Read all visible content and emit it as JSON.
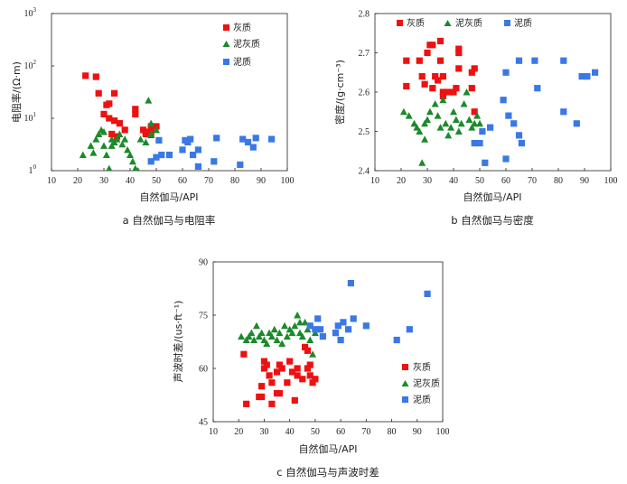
{
  "figure": {
    "series_colors": {
      "limestone": "#ee1111",
      "marl": "#1b8a2a",
      "mudstone": "#3a78e8"
    },
    "charts": [
      {
        "id": "a",
        "caption": "a  自然伽马与电阻率",
        "xlabel": "自然伽马/API",
        "ylabel": "电阻率/(Ω·m)",
        "ytick_labels": [
          "1",
          "10",
          "10",
          "10"
        ],
        "ytick_superscripts": [
          "0",
          "1",
          "2",
          "3"
        ],
        "xtick_labels": [
          "10",
          "20",
          "30",
          "40",
          "50",
          "60",
          "70",
          "80",
          "90",
          "100"
        ]
      },
      {
        "id": "b",
        "caption": "b  自然伽马与密度",
        "xlabel": "自然伽马/API",
        "ylabel": "密度/(g·cm⁻³)",
        "ytick_labels": [
          "2.4",
          "2.5",
          "2.6",
          "2.7",
          "2.8"
        ],
        "xtick_labels": [
          "10",
          "20",
          "30",
          "40",
          "50",
          "60",
          "70",
          "80",
          "90",
          "100"
        ]
      },
      {
        "id": "c",
        "caption": "c  自然伽马与声波时差",
        "xlabel": "自然伽马/API",
        "ylabel": "声波时差/(us·ft⁻¹)",
        "ytick_labels": [
          "45",
          "60",
          "75",
          "90"
        ],
        "xtick_labels": [
          "10",
          "20",
          "30",
          "40",
          "50",
          "60",
          "70",
          "80",
          "90",
          "100"
        ]
      }
    ]
  },
  "chart_data": [
    {
      "type": "scatter",
      "title": "a  自然伽马与电阻率",
      "xlabel": "自然伽马/API",
      "ylabel": "电阻率/(Ω·m)",
      "xlim": [
        10,
        100
      ],
      "ylim": [
        1,
        1000
      ],
      "yscale": "log",
      "legend": [
        "灰质",
        "泥灰质",
        "泥质"
      ],
      "legend_position": "top-center",
      "series": [
        {
          "name": "灰质",
          "marker": "square",
          "points": [
            [
              23,
              65
            ],
            [
              27,
              62
            ],
            [
              28,
              30
            ],
            [
              31,
              18
            ],
            [
              32,
              19
            ],
            [
              34,
              30
            ],
            [
              30,
              12
            ],
            [
              32,
              10
            ],
            [
              34,
              9
            ],
            [
              36,
              8
            ],
            [
              38,
              6
            ],
            [
              33,
              5
            ],
            [
              35,
              4.5
            ],
            [
              42,
              12
            ],
            [
              42,
              15
            ],
            [
              45,
              6
            ],
            [
              46,
              5.5
            ],
            [
              48,
              6
            ],
            [
              48,
              7
            ],
            [
              50,
              7
            ],
            [
              46,
              5
            ],
            [
              48,
              4.8
            ]
          ]
        },
        {
          "name": "泥灰质",
          "marker": "triangle",
          "points": [
            [
              22,
              2
            ],
            [
              25,
              3
            ],
            [
              26,
              2.2
            ],
            [
              27,
              4
            ],
            [
              28,
              5
            ],
            [
              29,
              6
            ],
            [
              30,
              5.5
            ],
            [
              30,
              3
            ],
            [
              31,
              2
            ],
            [
              33,
              3
            ],
            [
              33,
              4
            ],
            [
              34,
              3.5
            ],
            [
              35,
              4
            ],
            [
              37,
              3.2
            ],
            [
              38,
              4
            ],
            [
              39,
              2.5
            ],
            [
              40,
              2
            ],
            [
              41,
              1.5
            ],
            [
              42,
              1.1
            ],
            [
              43,
              1
            ],
            [
              44,
              4
            ],
            [
              46,
              3.5
            ],
            [
              47,
              22
            ],
            [
              48,
              8
            ],
            [
              48,
              5
            ],
            [
              50,
              6
            ],
            [
              36,
              5
            ],
            [
              32,
              1.1
            ]
          ]
        },
        {
          "name": "泥质",
          "marker": "square",
          "points": [
            [
              48,
              1.5
            ],
            [
              50,
              1.8
            ],
            [
              51,
              3.8
            ],
            [
              52,
              2
            ],
            [
              55,
              2
            ],
            [
              60,
              2.5
            ],
            [
              61,
              3.8
            ],
            [
              62,
              3.5
            ],
            [
              63,
              4
            ],
            [
              64,
              2
            ],
            [
              66,
              2.5
            ],
            [
              66,
              1.2
            ],
            [
              72,
              1.5
            ],
            [
              73,
              4.2
            ],
            [
              82,
              1.3
            ],
            [
              83,
              4
            ],
            [
              85,
              3.5
            ],
            [
              87,
              2.8
            ],
            [
              88,
              4.2
            ],
            [
              94,
              4
            ]
          ]
        }
      ]
    },
    {
      "type": "scatter",
      "title": "b  自然伽马与密度",
      "xlabel": "自然伽马/API",
      "ylabel": "密度/(g·cm⁻³)",
      "xlim": [
        10,
        100
      ],
      "ylim": [
        2.4,
        2.8
      ],
      "legend": [
        "灰质",
        "泥灰质",
        "泥质"
      ],
      "legend_position": "top",
      "series": [
        {
          "name": "灰质",
          "marker": "square",
          "points": [
            [
              22,
              2.68
            ],
            [
              22,
              2.615
            ],
            [
              27,
              2.68
            ],
            [
              28,
              2.64
            ],
            [
              29,
              2.62
            ],
            [
              30,
              2.7
            ],
            [
              31,
              2.72
            ],
            [
              32,
              2.72
            ],
            [
              33,
              2.64
            ],
            [
              34,
              2.63
            ],
            [
              35,
              2.73
            ],
            [
              35,
              2.68
            ],
            [
              36,
              2.6
            ],
            [
              36,
              2.59
            ],
            [
              36,
              2.64
            ],
            [
              38,
              2.6
            ],
            [
              40,
              2.6
            ],
            [
              41,
              2.61
            ],
            [
              42,
              2.71
            ],
            [
              42,
              2.7
            ],
            [
              42,
              2.66
            ],
            [
              47,
              2.65
            ],
            [
              47,
              2.61
            ],
            [
              48,
              2.66
            ],
            [
              48,
              2.55
            ],
            [
              32,
              2.61
            ]
          ]
        },
        {
          "name": "泥灰质",
          "marker": "triangle",
          "points": [
            [
              21,
              2.55
            ],
            [
              23,
              2.54
            ],
            [
              25,
              2.52
            ],
            [
              26,
              2.51
            ],
            [
              27,
              2.5
            ],
            [
              28,
              2.42
            ],
            [
              29,
              2.48
            ],
            [
              29,
              2.52
            ],
            [
              30,
              2.53
            ],
            [
              31,
              2.55
            ],
            [
              33,
              2.57
            ],
            [
              34,
              2.54
            ],
            [
              35,
              2.51
            ],
            [
              36,
              2.58
            ],
            [
              37,
              2.52
            ],
            [
              38,
              2.49
            ],
            [
              39,
              2.51
            ],
            [
              40,
              2.55
            ],
            [
              41,
              2.53
            ],
            [
              42,
              2.5
            ],
            [
              43,
              2.52
            ],
            [
              44,
              2.57
            ],
            [
              45,
              2.6
            ],
            [
              46,
              2.53
            ],
            [
              47,
              2.51
            ],
            [
              48,
              2.52
            ],
            [
              49,
              2.54
            ],
            [
              50,
              2.52
            ]
          ]
        },
        {
          "name": "泥质",
          "marker": "square",
          "points": [
            [
              48,
              2.47
            ],
            [
              50,
              2.47
            ],
            [
              51,
              2.5
            ],
            [
              52,
              2.42
            ],
            [
              54,
              2.51
            ],
            [
              59,
              2.58
            ],
            [
              60,
              2.65
            ],
            [
              60,
              2.43
            ],
            [
              61,
              2.54
            ],
            [
              63,
              2.52
            ],
            [
              65,
              2.68
            ],
            [
              65,
              2.49
            ],
            [
              66,
              2.47
            ],
            [
              71,
              2.68
            ],
            [
              72,
              2.61
            ],
            [
              82,
              2.68
            ],
            [
              82,
              2.55
            ],
            [
              87,
              2.52
            ],
            [
              89,
              2.64
            ],
            [
              91,
              2.64
            ],
            [
              94,
              2.65
            ]
          ]
        }
      ]
    },
    {
      "type": "scatter",
      "title": "c  自然伽马与声波时差",
      "xlabel": "自然伽马/API",
      "ylabel": "声波时差/(us·ft⁻¹)",
      "xlim": [
        10,
        100
      ],
      "ylim": [
        45,
        90
      ],
      "legend": [
        "灰质",
        "泥灰质",
        "泥质"
      ],
      "legend_position": "center-right",
      "series": [
        {
          "name": "灰质",
          "marker": "square",
          "points": [
            [
              22,
              64
            ],
            [
              23,
              50
            ],
            [
              28,
              52
            ],
            [
              29,
              52
            ],
            [
              29,
              55
            ],
            [
              30,
              60
            ],
            [
              30,
              62
            ],
            [
              31,
              61
            ],
            [
              32,
              58
            ],
            [
              33,
              56
            ],
            [
              33,
              50
            ],
            [
              35,
              59
            ],
            [
              35,
              53
            ],
            [
              36,
              53
            ],
            [
              36,
              61
            ],
            [
              37,
              60
            ],
            [
              39,
              56
            ],
            [
              40,
              62
            ],
            [
              41,
              59
            ],
            [
              42,
              51
            ],
            [
              43,
              60
            ],
            [
              43,
              58
            ],
            [
              45,
              57
            ],
            [
              46,
              66
            ],
            [
              47,
              65
            ],
            [
              47,
              60
            ],
            [
              48,
              58
            ],
            [
              49,
              56
            ],
            [
              50,
              57
            ],
            [
              48,
              61
            ]
          ]
        },
        {
          "name": "泥灰质",
          "marker": "triangle",
          "points": [
            [
              21,
              69
            ],
            [
              23,
              68
            ],
            [
              24,
              69
            ],
            [
              25,
              70
            ],
            [
              26,
              68
            ],
            [
              27,
              72
            ],
            [
              28,
              69
            ],
            [
              29,
              70
            ],
            [
              30,
              68
            ],
            [
              31,
              67
            ],
            [
              32,
              70
            ],
            [
              33,
              69
            ],
            [
              34,
              71
            ],
            [
              35,
              68
            ],
            [
              36,
              70
            ],
            [
              37,
              67
            ],
            [
              38,
              72
            ],
            [
              39,
              69
            ],
            [
              40,
              71
            ],
            [
              41,
              70
            ],
            [
              42,
              72
            ],
            [
              43,
              75
            ],
            [
              44,
              70
            ],
            [
              45,
              69
            ],
            [
              46,
              73
            ],
            [
              47,
              71
            ],
            [
              48,
              68
            ],
            [
              49,
              64
            ],
            [
              50,
              70
            ],
            [
              44,
              73
            ]
          ]
        },
        {
          "name": "泥质",
          "marker": "square",
          "points": [
            [
              48,
              72
            ],
            [
              50,
              71
            ],
            [
              51,
              74
            ],
            [
              52,
              71
            ],
            [
              53,
              69
            ],
            [
              58,
              70
            ],
            [
              59,
              72
            ],
            [
              60,
              68
            ],
            [
              61,
              73
            ],
            [
              63,
              71
            ],
            [
              64,
              84
            ],
            [
              65,
              74
            ],
            [
              70,
              72
            ],
            [
              82,
              68
            ],
            [
              87,
              71
            ],
            [
              94,
              81
            ]
          ]
        }
      ]
    }
  ]
}
